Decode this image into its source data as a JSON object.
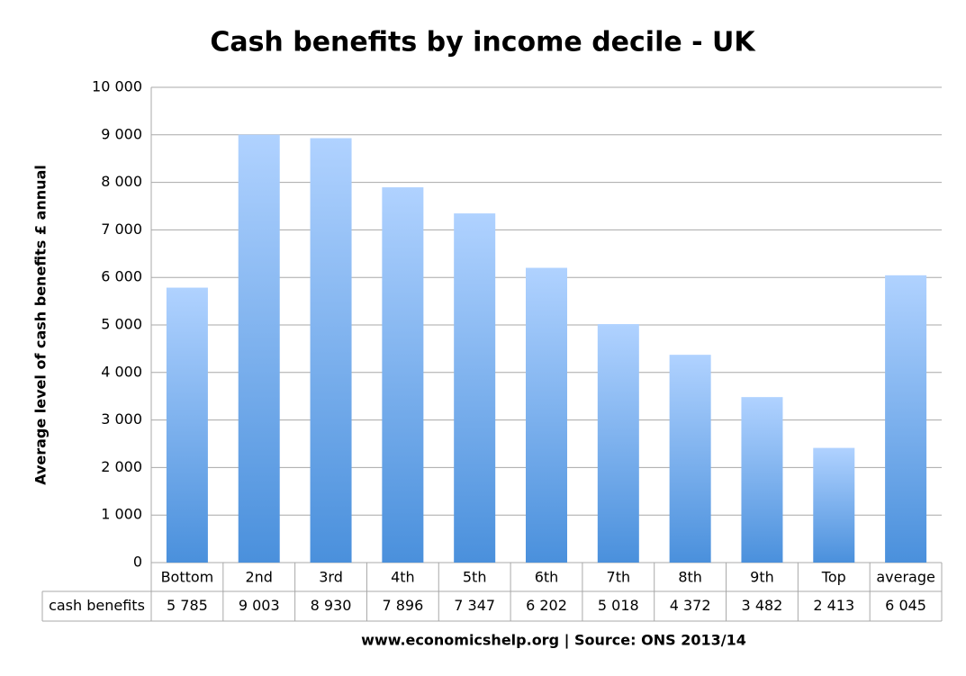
{
  "chart_data": {
    "type": "bar",
    "title": "Cash benefits by income decile - UK",
    "y_label": "Average level of cash benefits £ annual",
    "source": "www.economicshelp.org | Source: ONS 2013/14",
    "categories": [
      "Bottom",
      "2nd",
      "3rd",
      "4th",
      "5th",
      "6th",
      "7th",
      "8th",
      "9th",
      "Top",
      "average"
    ],
    "series": [
      {
        "name": "cash benefits",
        "color": "#4a90dc",
        "values": [
          5785,
          9003,
          8930,
          7896,
          7347,
          6202,
          5018,
          4372,
          3482,
          2413,
          6045
        ],
        "value_labels": [
          "5 785",
          "9 003",
          "8 930",
          "7 896",
          "7 347",
          "6 202",
          "5 018",
          "4 372",
          "3 482",
          "2 413",
          "6 045"
        ]
      }
    ],
    "ylim": [
      0,
      10000
    ],
    "yticks": [
      0,
      {
        "value": 1000,
        "label": "1 000"
      },
      {
        "value": 2000,
        "label": "2 000"
      },
      {
        "value": 3000,
        "label": "3 000"
      },
      {
        "value": 4000,
        "label": "4 000"
      },
      {
        "value": 5000,
        "label": "5 000"
      },
      {
        "value": 6000,
        "label": "6 000"
      },
      {
        "value": 7000,
        "label": "7 000"
      },
      {
        "value": 8000,
        "label": "8 000"
      },
      {
        "value": 9000,
        "label": "9 000"
      },
      {
        "value": 10000,
        "label": "10 000"
      }
    ],
    "grid": true
  }
}
